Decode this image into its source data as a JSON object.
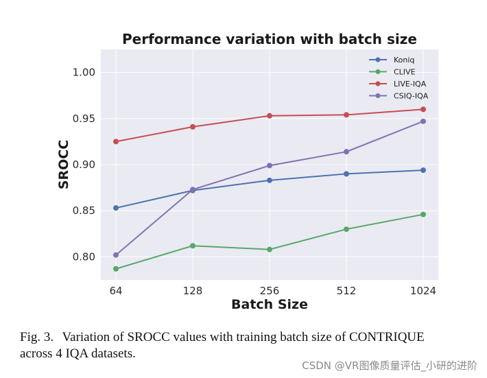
{
  "chart_data": {
    "type": "line",
    "title": "Performance variation with batch size",
    "xlabel": "Batch Size",
    "ylabel": "SROCC",
    "categories": [
      "64",
      "128",
      "256",
      "512",
      "1024"
    ],
    "ylim": [
      0.775,
      1.025
    ],
    "yticks": [
      0.8,
      0.85,
      0.9,
      0.95,
      1.0
    ],
    "ytick_labels": [
      "0.80",
      "0.85",
      "0.90",
      "0.95",
      "1.00"
    ],
    "grid": true,
    "legend_position": "top-right",
    "series": [
      {
        "name": "Koniq",
        "color": "#4c72b0",
        "values": [
          0.853,
          0.872,
          0.883,
          0.89,
          0.894
        ]
      },
      {
        "name": "CLIVE",
        "color": "#55a868",
        "values": [
          0.787,
          0.812,
          0.808,
          0.83,
          0.846
        ]
      },
      {
        "name": "LIVE-IQA",
        "color": "#c44e52",
        "values": [
          0.925,
          0.941,
          0.953,
          0.954,
          0.96
        ]
      },
      {
        "name": "CSIQ-IQA",
        "color": "#8172b2",
        "values": [
          0.802,
          0.873,
          0.899,
          0.914,
          0.947
        ]
      }
    ]
  },
  "caption": {
    "figure_number": "Fig. 3.",
    "line1": "Variation of SROCC values with training batch size of CONTRIQUE",
    "line2": "across 4 IQA datasets."
  },
  "watermark": "CSDN @VR图像质量评估_小研的进阶"
}
